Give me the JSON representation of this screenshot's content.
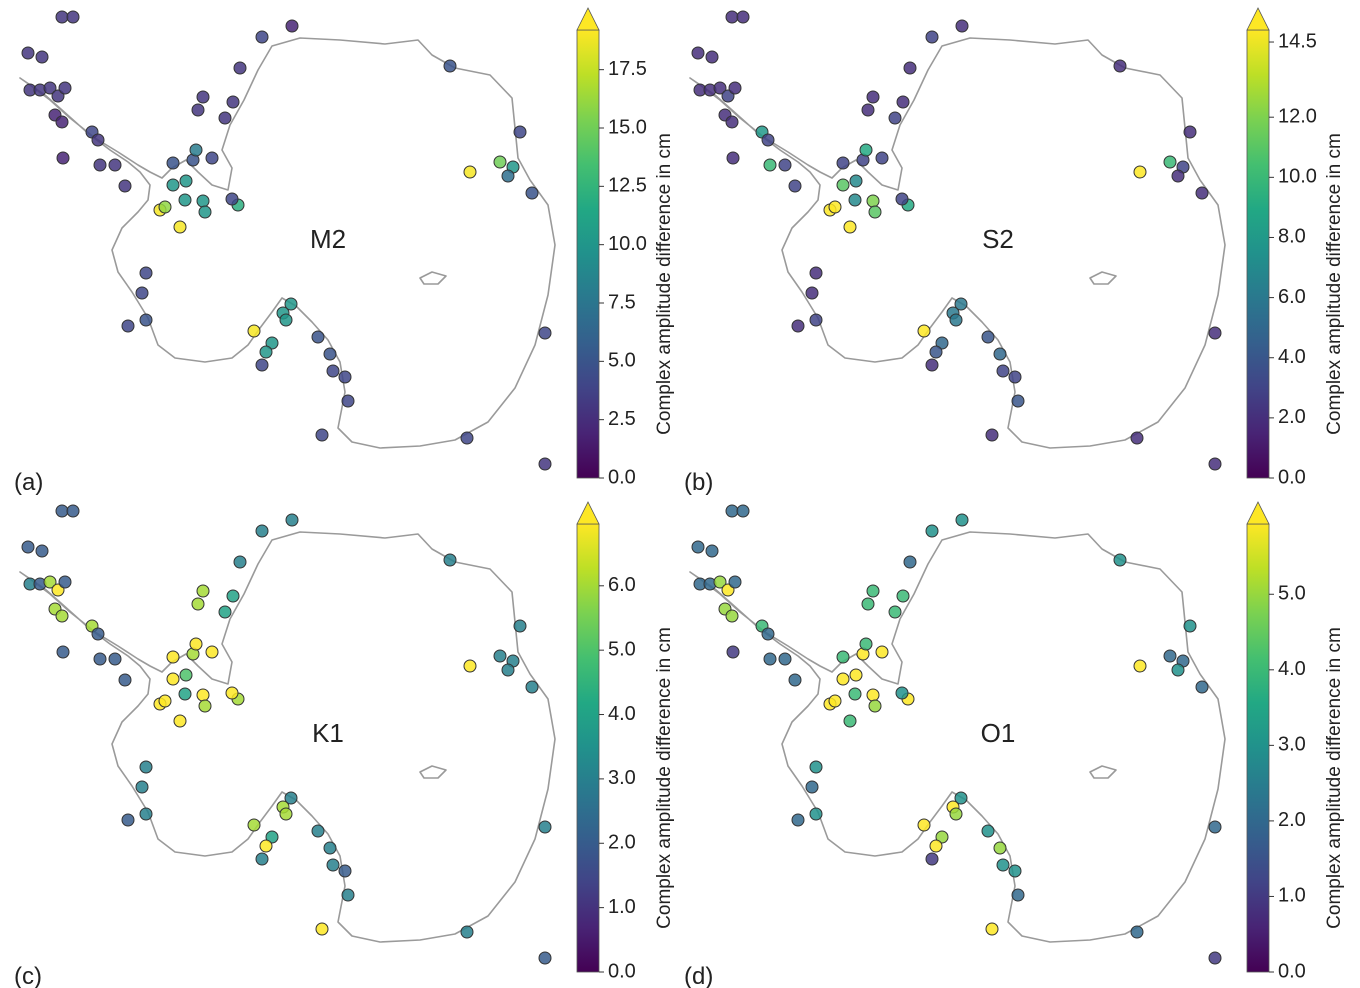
{
  "chart_data": [
    {
      "type": "scatter",
      "panel_label": "(a)",
      "title": "M2",
      "colormap": "viridis",
      "xlim": [
        0,
        560
      ],
      "ylim": [
        480,
        0
      ],
      "x": [
        62,
        73,
        28,
        42,
        30,
        40,
        50,
        58,
        65,
        55,
        62,
        92,
        98,
        63,
        100,
        115,
        125,
        262,
        292,
        240,
        203,
        198,
        233,
        225,
        173,
        193,
        196,
        212,
        186,
        173,
        185,
        203,
        205,
        160,
        165,
        180,
        238,
        232,
        450,
        520,
        470,
        500,
        513,
        508,
        532,
        146,
        142,
        146,
        128,
        291,
        283,
        286,
        254,
        272,
        266,
        262,
        318,
        330,
        333,
        345,
        348,
        322,
        545,
        467,
        545
      ],
      "y": [
        17,
        17,
        53,
        57,
        90,
        90,
        88,
        96,
        88,
        115,
        122,
        132,
        140,
        158,
        165,
        165,
        186,
        37,
        26,
        68,
        97,
        110,
        102,
        118,
        163,
        160,
        150,
        158,
        181,
        185,
        200,
        201,
        212,
        210,
        207,
        227,
        205,
        199,
        66,
        132,
        172,
        162,
        167,
        176,
        193,
        273,
        293,
        320,
        326,
        304,
        313,
        320,
        331,
        343,
        352,
        365,
        337,
        354,
        371,
        377,
        401,
        435,
        333,
        438,
        464
      ],
      "values": [
        3,
        3,
        3,
        3,
        3,
        3,
        3,
        3,
        3,
        2,
        2,
        4,
        3,
        2,
        3,
        3,
        3,
        4,
        2,
        3,
        3,
        3,
        3,
        3,
        5,
        5,
        8,
        4,
        10,
        10,
        10,
        10,
        10,
        19,
        16,
        19,
        12,
        4,
        5,
        4,
        19,
        15,
        10,
        7,
        5,
        4,
        4,
        5,
        4,
        10,
        10,
        10,
        19,
        10,
        10,
        4,
        5,
        5,
        4,
        4,
        4,
        4,
        4,
        4,
        3
      ],
      "colorbar": {
        "label": "Complex amplitude difference in cm",
        "clim": [
          0,
          19.2
        ],
        "extend": "max",
        "ticks": [
          {
            "value": 0,
            "label": "0.0"
          },
          {
            "value": 2.5,
            "label": "2.5"
          },
          {
            "value": 5,
            "label": "5.0"
          },
          {
            "value": 7.5,
            "label": "7.5"
          },
          {
            "value": 10,
            "label": "10.0"
          },
          {
            "value": 12.5,
            "label": "12.5"
          },
          {
            "value": 15,
            "label": "15.0"
          },
          {
            "value": 17.5,
            "label": "17.5"
          }
        ]
      }
    },
    {
      "type": "scatter",
      "panel_label": "(b)",
      "title": "S2",
      "colormap": "viridis",
      "xlim": [
        0,
        560
      ],
      "ylim": [
        480,
        0
      ],
      "x": [
        62,
        73,
        28,
        42,
        30,
        40,
        50,
        58,
        65,
        55,
        62,
        92,
        98,
        63,
        100,
        115,
        125,
        262,
        292,
        240,
        203,
        198,
        233,
        225,
        173,
        193,
        196,
        212,
        186,
        173,
        185,
        203,
        205,
        160,
        165,
        180,
        238,
        232,
        450,
        520,
        470,
        500,
        513,
        508,
        532,
        146,
        142,
        146,
        128,
        291,
        283,
        286,
        254,
        272,
        266,
        262,
        318,
        330,
        333,
        345,
        348,
        322,
        545,
        467,
        545
      ],
      "y": [
        17,
        17,
        53,
        57,
        90,
        90,
        88,
        96,
        88,
        115,
        122,
        132,
        140,
        158,
        165,
        165,
        186,
        37,
        26,
        68,
        97,
        110,
        102,
        118,
        163,
        160,
        150,
        158,
        181,
        185,
        200,
        201,
        212,
        210,
        207,
        227,
        205,
        199,
        66,
        132,
        172,
        162,
        167,
        176,
        193,
        273,
        293,
        320,
        326,
        304,
        313,
        320,
        331,
        343,
        352,
        365,
        337,
        354,
        371,
        377,
        401,
        435,
        333,
        438,
        464
      ],
      "values": [
        2,
        2,
        2,
        2,
        2,
        2,
        2,
        3,
        2,
        2,
        2,
        8,
        3,
        2,
        10,
        3,
        3,
        3,
        2,
        2,
        2,
        2,
        2,
        3,
        3,
        3,
        9,
        3,
        7,
        11,
        7,
        12,
        11,
        15,
        15,
        15,
        9,
        3,
        2,
        2,
        15,
        10,
        3,
        2,
        2,
        2,
        2,
        3,
        2,
        6,
        6,
        6,
        15,
        5,
        4,
        2,
        4,
        5,
        3,
        3,
        4,
        2,
        2,
        2,
        2
      ],
      "colorbar": {
        "label": "Complex amplitude difference in cm",
        "clim": [
          0,
          14.9
        ],
        "extend": "max",
        "ticks": [
          {
            "value": 0,
            "label": "0.0"
          },
          {
            "value": 2,
            "label": "2.0"
          },
          {
            "value": 4,
            "label": "4.0"
          },
          {
            "value": 6,
            "label": "6.0"
          },
          {
            "value": 8,
            "label": "8.0"
          },
          {
            "value": 10,
            "label": "10.0"
          },
          {
            "value": 12,
            "label": "12.0"
          },
          14.5
        ]
      }
    },
    {
      "type": "scatter",
      "panel_label": "(c)",
      "title": "K1",
      "colormap": "viridis",
      "xlim": [
        0,
        560
      ],
      "ylim": [
        480,
        0
      ],
      "x": [
        62,
        73,
        28,
        42,
        30,
        40,
        50,
        58,
        65,
        55,
        62,
        92,
        98,
        63,
        100,
        115,
        125,
        262,
        292,
        240,
        203,
        198,
        233,
        225,
        173,
        193,
        196,
        212,
        186,
        173,
        185,
        203,
        205,
        160,
        165,
        180,
        238,
        232,
        450,
        520,
        470,
        500,
        513,
        508,
        532,
        146,
        142,
        146,
        128,
        291,
        283,
        286,
        254,
        272,
        266,
        262,
        318,
        330,
        333,
        345,
        348,
        322,
        545,
        467,
        545
      ],
      "y": [
        17,
        17,
        53,
        57,
        90,
        90,
        88,
        96,
        88,
        115,
        122,
        132,
        140,
        158,
        165,
        165,
        186,
        37,
        26,
        68,
        97,
        110,
        102,
        118,
        163,
        160,
        150,
        158,
        181,
        185,
        200,
        201,
        212,
        210,
        207,
        227,
        205,
        199,
        66,
        132,
        172,
        162,
        167,
        176,
        193,
        273,
        293,
        320,
        326,
        304,
        313,
        320,
        331,
        343,
        352,
        365,
        337,
        354,
        371,
        377,
        401,
        435,
        333,
        438,
        464
      ],
      "values": [
        2,
        2,
        2,
        2,
        3,
        2,
        6,
        7,
        2,
        6,
        6,
        6,
        2,
        2,
        2,
        2,
        2,
        3,
        3,
        3,
        6,
        6,
        4,
        4,
        7,
        6,
        7,
        7,
        5,
        7,
        4,
        7,
        6,
        7,
        7,
        7,
        6,
        7,
        3,
        3,
        7,
        3,
        3,
        3,
        3,
        3,
        3,
        3,
        2,
        3,
        6,
        6,
        6,
        4,
        7,
        3,
        3,
        3,
        3,
        2,
        3,
        7,
        3,
        3,
        2
      ],
      "colorbar": {
        "label": "Complex amplitude difference in cm",
        "clim": [
          0,
          6.96
        ],
        "extend": "max",
        "ticks": [
          {
            "value": 0,
            "label": "0.0"
          },
          {
            "value": 1,
            "label": "1.0"
          },
          {
            "value": 2,
            "label": "2.0"
          },
          {
            "value": 3,
            "label": "3.0"
          },
          {
            "value": 4,
            "label": "4.0"
          },
          {
            "value": 5,
            "label": "5.0"
          },
          {
            "value": 6,
            "label": "6.0"
          }
        ]
      }
    },
    {
      "type": "scatter",
      "panel_label": "(d)",
      "title": "O1",
      "colormap": "viridis",
      "xlim": [
        0,
        560
      ],
      "ylim": [
        480,
        0
      ],
      "x": [
        62,
        73,
        28,
        42,
        30,
        40,
        50,
        58,
        65,
        55,
        62,
        92,
        98,
        63,
        100,
        115,
        125,
        262,
        292,
        240,
        203,
        198,
        233,
        225,
        173,
        193,
        196,
        212,
        186,
        173,
        185,
        203,
        205,
        160,
        165,
        180,
        238,
        232,
        450,
        520,
        470,
        500,
        513,
        508,
        532,
        146,
        142,
        146,
        128,
        291,
        283,
        286,
        254,
        272,
        266,
        262,
        318,
        330,
        333,
        345,
        348,
        322,
        545,
        467,
        545
      ],
      "y": [
        17,
        17,
        53,
        57,
        90,
        90,
        88,
        96,
        88,
        115,
        122,
        132,
        140,
        158,
        165,
        165,
        186,
        37,
        26,
        68,
        97,
        110,
        102,
        118,
        163,
        160,
        150,
        158,
        181,
        185,
        200,
        201,
        212,
        210,
        207,
        227,
        205,
        199,
        66,
        132,
        172,
        162,
        167,
        176,
        193,
        273,
        293,
        320,
        326,
        304,
        313,
        320,
        331,
        343,
        352,
        365,
        337,
        354,
        371,
        377,
        401,
        435,
        333,
        438,
        464
      ],
      "values": [
        2,
        2,
        2,
        2,
        2,
        2,
        5,
        6,
        2,
        5,
        5,
        4,
        2,
        1,
        2,
        2,
        2,
        3,
        3,
        2,
        4,
        4,
        4,
        4,
        4,
        6,
        4,
        6,
        6,
        6,
        4,
        6,
        5,
        6,
        6,
        4,
        6,
        3,
        3,
        3,
        6,
        2,
        2,
        3,
        2,
        3,
        2,
        3,
        2,
        3,
        6,
        5,
        6,
        5,
        6,
        1,
        3,
        5,
        3,
        3,
        2,
        6,
        2,
        2,
        1
      ],
      "colorbar": {
        "label": "Complex amplitude difference in cm",
        "clim": [
          0,
          5.93
        ],
        "extend": "max",
        "ticks": [
          {
            "value": 0,
            "label": "0.0"
          },
          {
            "value": 1,
            "label": "1.0"
          },
          {
            "value": 2,
            "label": "2.0"
          },
          {
            "value": 3,
            "label": "3.0"
          },
          {
            "value": 4,
            "label": "4.0"
          },
          {
            "value": 5,
            "label": "5.0"
          }
        ]
      }
    }
  ]
}
